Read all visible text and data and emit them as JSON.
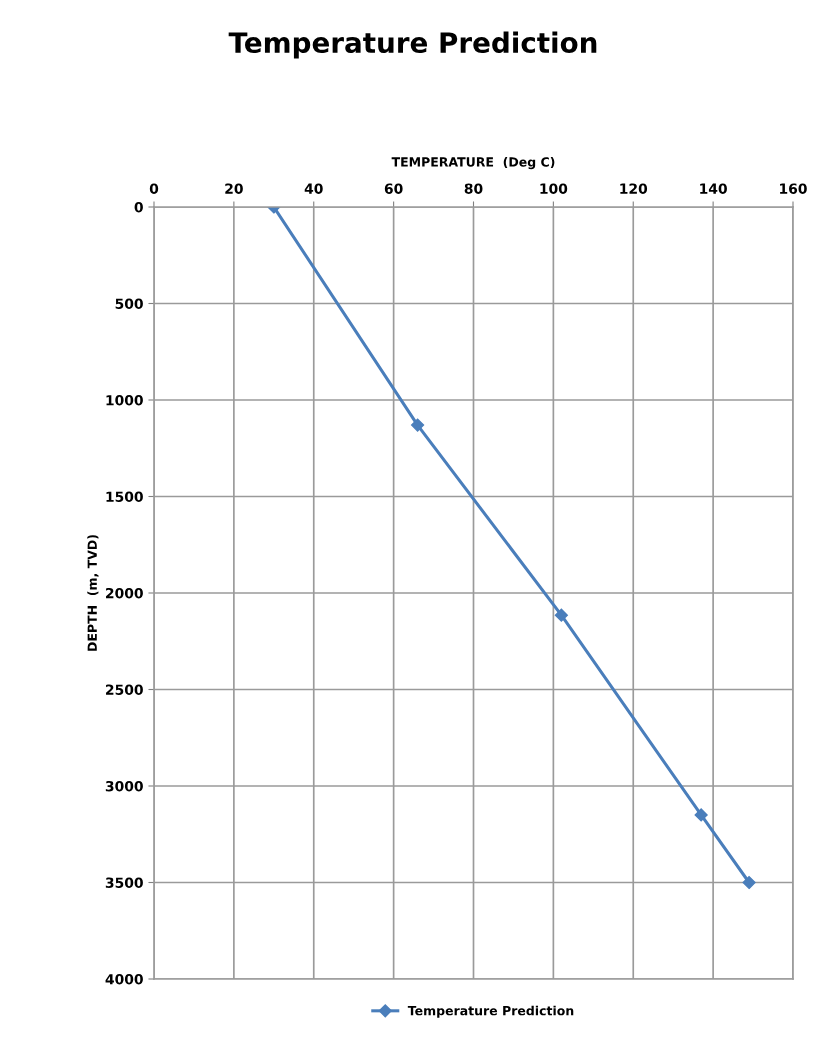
{
  "chart_data": {
    "type": "line",
    "title": "Temperature Prediction",
    "xlabel": "TEMPERATURE  (Deg C)",
    "ylabel": "DEPTH  (m, TVD)",
    "series": [
      {
        "name": "Temperature Prediction",
        "color": "#4a7ebb",
        "x": [
          30,
          66,
          102,
          137,
          149
        ],
        "values": [
          0,
          1130,
          2115,
          3150,
          3500
        ]
      }
    ],
    "xlim": [
      0,
      160
    ],
    "xticks": [
      0,
      20,
      40,
      60,
      80,
      100,
      120,
      140,
      160
    ],
    "ylim": [
      4000,
      0
    ],
    "yticks": [
      0,
      500,
      1000,
      1500,
      2000,
      2500,
      3000,
      3500,
      4000
    ],
    "grid": true,
    "legend": "bottom",
    "marker": "diamond",
    "line_style": "solid"
  }
}
